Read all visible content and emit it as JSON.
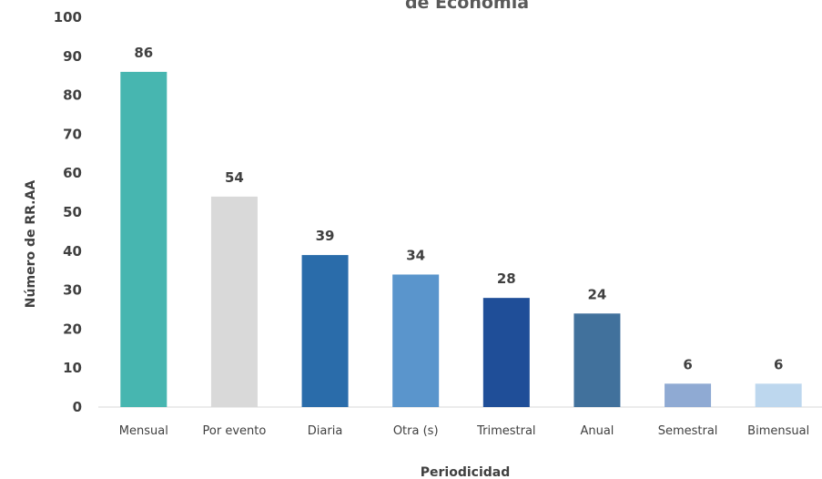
{
  "chart_data": {
    "type": "bar",
    "title": "de Economía",
    "xlabel": "Periodicidad",
    "ylabel": "Número de RR.AA",
    "categories": [
      "Mensual",
      "Por evento",
      "Diaria",
      "Otra (s)",
      "Trimestral",
      "Anual",
      "Semestral",
      "Bimensual"
    ],
    "values": [
      86,
      54,
      39,
      34,
      28,
      24,
      6,
      6
    ],
    "colors": [
      "#47b6b0",
      "#d9d9d9",
      "#2a6caa",
      "#5a95cc",
      "#1f4e98",
      "#41719c",
      "#8faad3",
      "#bdd7ee"
    ],
    "ylim": [
      0,
      100
    ],
    "yticks": [
      0,
      10,
      20,
      30,
      40,
      50,
      60,
      70,
      80,
      90,
      100
    ],
    "grid": false,
    "legend": "none"
  }
}
